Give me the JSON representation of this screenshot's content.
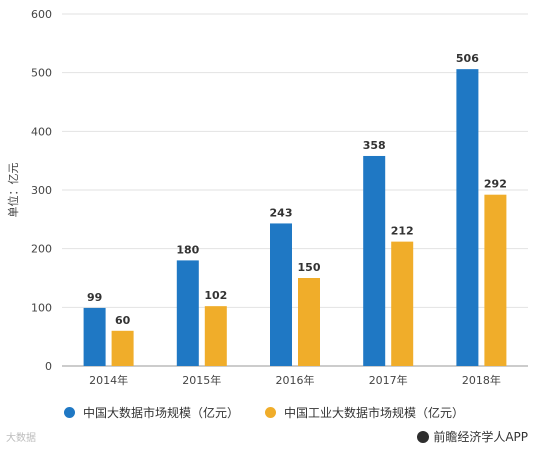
{
  "chart_data": {
    "type": "bar",
    "categories": [
      "2014年",
      "2015年",
      "2016年",
      "2017年",
      "2018年"
    ],
    "series": [
      {
        "name": "中国大数据市场规模（亿元）",
        "values": [
          99,
          180,
          243,
          358,
          506
        ],
        "color": "#1f78c4"
      },
      {
        "name": "中国工业大数据市场规模（亿元）",
        "values": [
          60,
          102,
          150,
          212,
          292
        ],
        "color": "#f0ad2a"
      }
    ],
    "ylabel": "单位：亿元",
    "ylim": [
      0,
      600
    ],
    "yticks": [
      0,
      100,
      200,
      300,
      400,
      500,
      600
    ],
    "grid": true,
    "legend": "bottom"
  },
  "footer": {
    "left": "大数据",
    "right": "前瞻经济学人APP"
  }
}
